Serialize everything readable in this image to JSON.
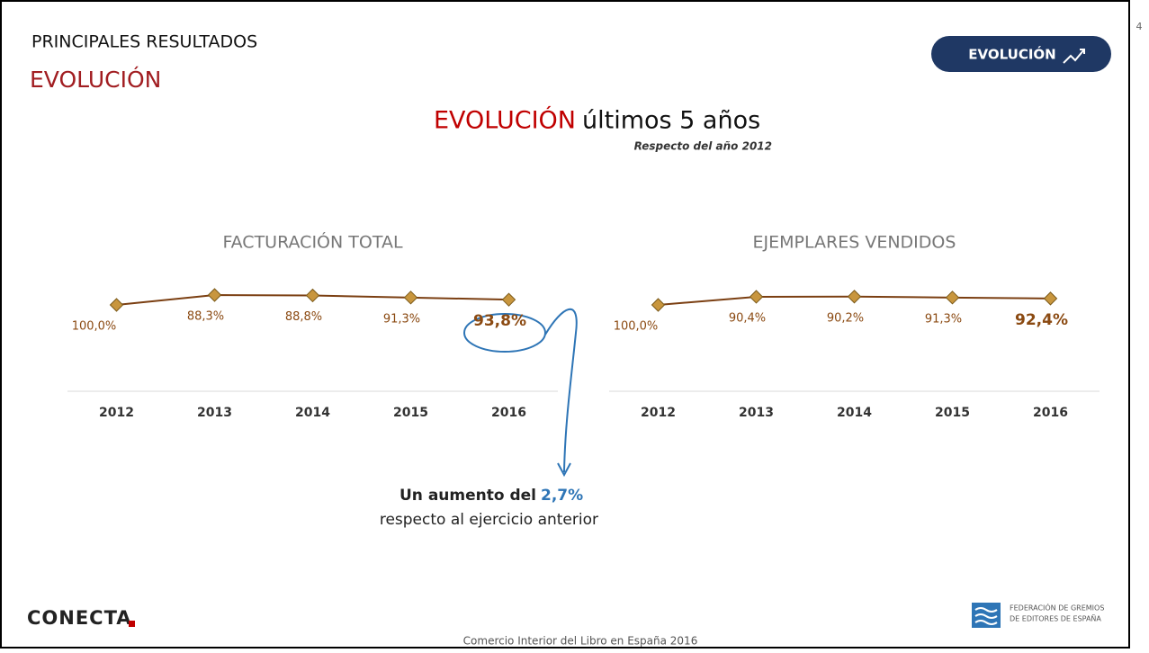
{
  "header": {
    "section": "PRINCIPALES RESULTADOS",
    "subsection": "EVOLUCIÓN",
    "badge": "EVOLUCIÓN",
    "page_number": "4"
  },
  "headline": {
    "title_red": "EVOLUCIÓN",
    "title_rest": "últimos 5 años",
    "subtitle": "Respecto del año 2012"
  },
  "chart_data": [
    {
      "type": "line",
      "title": "FACTURACIÓN TOTAL",
      "categories": [
        "2012",
        "2013",
        "2014",
        "2015",
        "2016"
      ],
      "values": [
        100.0,
        88.3,
        88.8,
        91.3,
        93.8
      ],
      "value_labels": [
        "100,0%",
        "88,3%",
        "88,8%",
        "91,3%",
        "93,8%"
      ],
      "color": "#7b3f12",
      "marker_color": "#c8963e"
    },
    {
      "type": "line",
      "title": "EJEMPLARES VENDIDOS",
      "categories": [
        "2012",
        "2013",
        "2014",
        "2015",
        "2016"
      ],
      "values": [
        100.0,
        90.4,
        90.2,
        91.3,
        92.4
      ],
      "value_labels": [
        "100,0%",
        "90,4%",
        "90,2%",
        "91,3%",
        "92,4%"
      ],
      "color": "#7b3f12",
      "marker_color": "#c8963e"
    }
  ],
  "annotation": {
    "lead": "Un aumento del",
    "figure": "2,7%",
    "rest": "respecto al ejercicio anterior"
  },
  "footer": {
    "logo": "CONECTA",
    "center": "Comercio Interior del Libro en España 2016",
    "org_line1": "FEDERACIÓN DE GREMIOS",
    "org_line2": "DE EDITORES DE ESPAÑA"
  }
}
